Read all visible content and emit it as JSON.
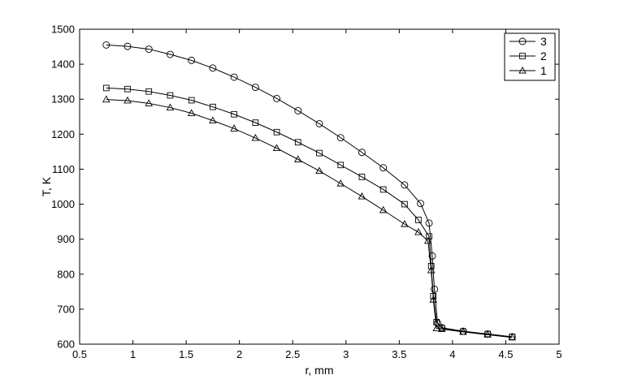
{
  "chart_data": {
    "type": "line",
    "title": "",
    "xlabel": "r, mm",
    "ylabel": "T, K",
    "xlim": [
      0.5,
      5
    ],
    "ylim": [
      600,
      1500
    ],
    "xticks": [
      0.5,
      1,
      1.5,
      2,
      2.5,
      3,
      3.5,
      4,
      4.5,
      5
    ],
    "yticks": [
      600,
      700,
      800,
      900,
      1000,
      1100,
      1200,
      1300,
      1400,
      1500
    ],
    "grid": false,
    "legend": "top-right",
    "line_color": "#000000",
    "series": [
      {
        "name": "3",
        "marker": "circle",
        "x": [
          0.75,
          0.95,
          1.15,
          1.35,
          1.55,
          1.75,
          1.95,
          2.15,
          2.35,
          2.55,
          2.75,
          2.95,
          3.15,
          3.35,
          3.55,
          3.7,
          3.78,
          3.81,
          3.83,
          3.86,
          3.9,
          4.1,
          4.33,
          4.56
        ],
        "y": [
          1455,
          1451,
          1443,
          1428,
          1411,
          1389,
          1363,
          1334,
          1302,
          1267,
          1230,
          1190,
          1148,
          1104,
          1055,
          1002,
          946,
          852,
          757,
          660,
          647,
          637,
          629,
          621
        ]
      },
      {
        "name": "2",
        "marker": "square",
        "x": [
          0.75,
          0.95,
          1.15,
          1.35,
          1.55,
          1.75,
          1.95,
          2.15,
          2.35,
          2.55,
          2.75,
          2.95,
          3.15,
          3.35,
          3.55,
          3.68,
          3.78,
          3.8,
          3.82,
          3.85,
          3.9,
          4.1,
          4.33,
          4.56
        ],
        "y": [
          1332,
          1329,
          1322,
          1311,
          1297,
          1278,
          1257,
          1233,
          1206,
          1177,
          1146,
          1112,
          1078,
          1042,
          1000,
          955,
          908,
          823,
          737,
          663,
          646,
          636,
          629,
          621
        ]
      },
      {
        "name": "1",
        "marker": "triangle",
        "x": [
          0.75,
          0.95,
          1.15,
          1.35,
          1.55,
          1.75,
          1.95,
          2.15,
          2.35,
          2.55,
          2.75,
          2.95,
          3.15,
          3.35,
          3.55,
          3.68,
          3.77,
          3.8,
          3.82,
          3.85,
          3.9,
          4.1,
          4.33,
          4.56
        ],
        "y": [
          1299,
          1296,
          1288,
          1276,
          1260,
          1239,
          1216,
          1189,
          1160,
          1128,
          1095,
          1059,
          1022,
          983,
          943,
          920,
          895,
          811,
          727,
          645,
          643,
          635,
          627,
          619
        ]
      }
    ]
  }
}
